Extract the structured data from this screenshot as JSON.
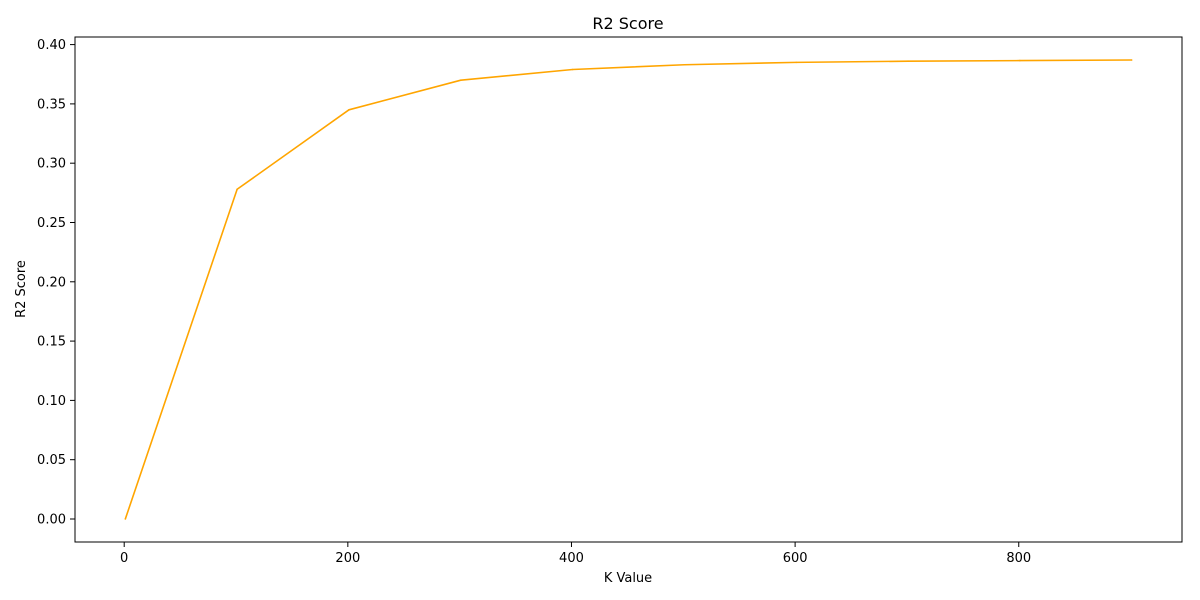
{
  "chart_data": {
    "type": "line",
    "title": "R2 Score",
    "xlabel": "K Value",
    "ylabel": "R2 Score",
    "x": [
      1,
      101,
      201,
      301,
      401,
      501,
      601,
      701,
      801,
      901
    ],
    "series": [
      {
        "values": [
          0.0,
          0.278,
          0.345,
          0.37,
          0.379,
          0.383,
          0.385,
          0.386,
          0.3865,
          0.387
        ],
        "color": "#FFA500"
      }
    ],
    "xlim": [
      -44,
      946
    ],
    "ylim": [
      -0.0194,
      0.4064
    ],
    "xticks": [
      0,
      200,
      400,
      600,
      800
    ],
    "xtick_labels": [
      "0",
      "200",
      "400",
      "600",
      "800"
    ],
    "yticks": [
      0.0,
      0.05,
      0.1,
      0.15,
      0.2,
      0.25,
      0.3,
      0.35,
      0.4
    ],
    "ytick_labels": [
      "0.00",
      "0.05",
      "0.10",
      "0.15",
      "0.20",
      "0.25",
      "0.30",
      "0.35",
      "0.40"
    ],
    "grid": false,
    "legend": false
  }
}
